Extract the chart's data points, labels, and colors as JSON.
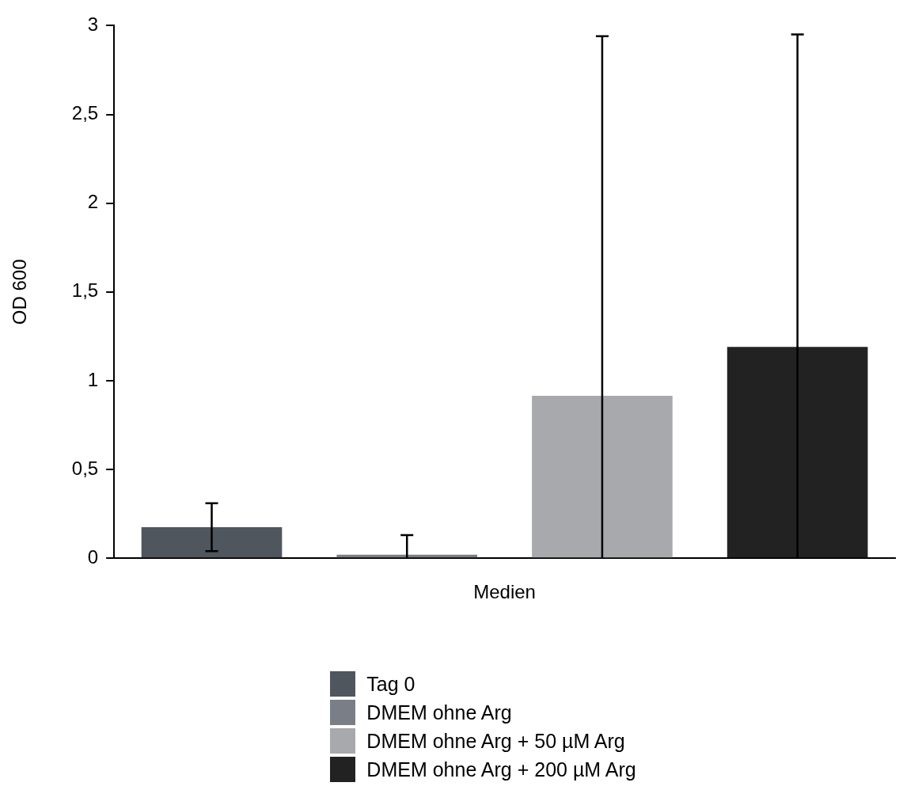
{
  "chart_data": {
    "type": "bar",
    "xlabel": "Medien",
    "ylabel": "OD 600",
    "categories": [
      null
    ],
    "series": [
      {
        "name": "Tag 0",
        "color": "#4f565e",
        "values": [
          0.175
        ],
        "errors": [
          [
            0.04,
            0.31
          ]
        ]
      },
      {
        "name": "DMEM ohne Arg",
        "color": "#7a7f87",
        "values": [
          0.02
        ],
        "errors": [
          [
            0,
            0.13
          ]
        ]
      },
      {
        "name": "DMEM ohne Arg + 50 µM Arg",
        "color": "#a7a9ac",
        "values": [
          0.915
        ],
        "errors": [
          [
            0,
            2.94
          ]
        ]
      },
      {
        "name": "DMEM ohne Arg + 200 µM Arg",
        "color": "#222222",
        "values": [
          1.19
        ],
        "errors": [
          [
            0,
            2.95
          ]
        ]
      }
    ],
    "ylim": [
      0,
      3
    ],
    "yticks": [
      0,
      {
        "value": 0.5,
        "label": "0,5"
      },
      1,
      {
        "value": 1.5,
        "label": "1,5"
      },
      2,
      {
        "value": 2.5,
        "label": "2,5"
      },
      3
    ],
    "tick_labels": "y",
    "grid": false,
    "legend": "bottom"
  }
}
